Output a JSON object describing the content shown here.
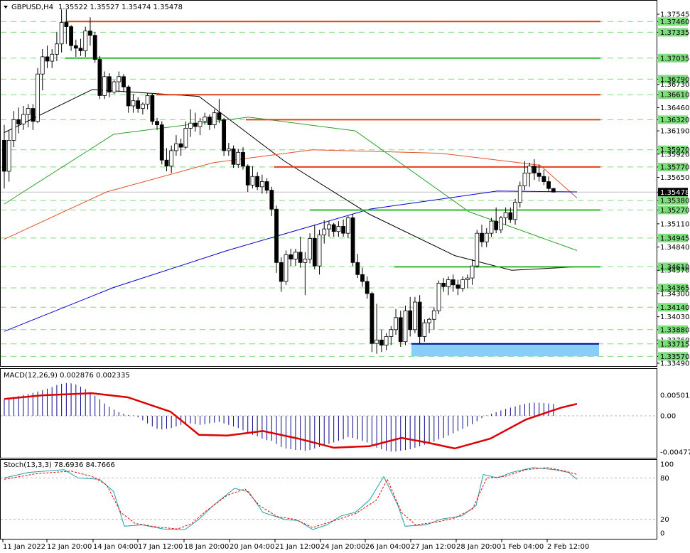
{
  "window": {
    "symbol_title": "GBPUSD,H4",
    "ohlc": "1.35522 1.35527 1.35474 1.35478",
    "menu_icon": "triangle-down-icon"
  },
  "colors": {
    "background": "#ffffff",
    "bull_body": "#ffffff",
    "bear_body": "#000000",
    "candle_outline": "#000000",
    "ma_fast": "#000000",
    "ma_medium": "#2ca02c",
    "ma_slow": "#e0522a",
    "ma_longest": "#0000cc",
    "level_red": "#e0401a",
    "level_green": "#2eb82e",
    "support_zone": "#87cefa",
    "support_line": "#00008b",
    "dashed_grid": "#7fdc7f",
    "macd_hist": "#0a0a8a",
    "macd_signal": "#dd0000",
    "stoch_main": "#21a0a8",
    "stoch_signal": "#ee0000",
    "axis_label_bg": "#7fdc7f",
    "current_price_bg": "#000000"
  },
  "price_axis": {
    "labels": [
      "1.37545",
      "1.37460",
      "1.37335",
      "1.37035",
      "1.36790",
      "1.36730",
      "1.36610",
      "1.36460",
      "1.36320",
      "1.36190",
      "1.35970",
      "1.35920",
      "1.35770",
      "1.35650",
      "1.35478",
      "1.35380",
      "1.35270",
      "1.35110",
      "1.34945",
      "1.34840",
      "1.34610",
      "1.34570",
      "1.34365",
      "1.34300",
      "1.34140",
      "1.34030",
      "1.33880",
      "1.33760",
      "1.33715",
      "1.33570",
      "1.33490"
    ],
    "highlighted": [
      "1.37460",
      "1.37335",
      "1.37035",
      "1.36790",
      "1.36610",
      "1.36320",
      "1.35970",
      "1.35770",
      "1.35380",
      "1.35270",
      "1.34945",
      "1.34610",
      "1.34365",
      "1.34140",
      "1.33880",
      "1.33715",
      "1.33570"
    ],
    "current_price": "1.35478"
  },
  "time_axis": {
    "labels": [
      "11 Jan 2022",
      "12 Jan 20:00",
      "14 Jan 04:00",
      "17 Jan 12:00",
      "18 Jan 20:00",
      "20 Jan 04:00",
      "21 Jan 12:00",
      "24 Jan 20:00",
      "26 Jan 04:00",
      "27 Jan 12:00",
      "28 Jan 20:00",
      "1 Feb 04:00",
      "2 Feb 12:00"
    ]
  },
  "macd_panel": {
    "title": "MACD(12,26,9) 0.002876 0.002335",
    "axis_labels": [
      "0.005015",
      "0.00",
      "-0.004773"
    ]
  },
  "stoch_panel": {
    "title": "Stoch(13,3,3) 78.6936 84.7666",
    "axis_labels": [
      "100",
      "80",
      "20",
      "0"
    ]
  },
  "chart_data": {
    "type": "candlestick",
    "title": "GBPUSD,H4",
    "ylim": [
      1.3349,
      1.37545
    ],
    "grid": false,
    "horizontal_levels": [
      {
        "price": 1.3746,
        "color": "red"
      },
      {
        "price": 1.37035,
        "color": "green"
      },
      {
        "price": 1.3661,
        "color": "red"
      },
      {
        "price": 1.3632,
        "color": "red"
      },
      {
        "price": 1.3577,
        "color": "red"
      },
      {
        "price": 1.3527,
        "color": "green"
      },
      {
        "price": 1.3461,
        "color": "green"
      }
    ],
    "support_zone": {
      "low": 1.3357,
      "high": 1.33715
    },
    "moving_average_sample": [
      {
        "name": "fast",
        "values": [
          1.3617,
          1.3667,
          1.3659,
          1.3584,
          1.3522,
          1.3474,
          1.3457,
          1.3461
        ]
      },
      {
        "name": "medium",
        "values": [
          1.3534,
          1.3615,
          1.3635,
          1.3619,
          1.3525,
          1.348
        ]
      },
      {
        "name": "slow",
        "values": [
          1.3493,
          1.3548,
          1.3582,
          1.3597,
          1.3593,
          1.3579,
          1.3541
        ]
      },
      {
        "name": "longest",
        "values": [
          1.3386,
          1.3437,
          1.348,
          1.3528,
          1.3549,
          1.3548
        ]
      }
    ],
    "candles": [
      [
        1.3608,
        1.3626,
        1.3552,
        1.3572
      ],
      [
        1.3572,
        1.3619,
        1.356,
        1.3608
      ],
      [
        1.3608,
        1.3642,
        1.36,
        1.3632
      ],
      [
        1.3632,
        1.3646,
        1.3616,
        1.3627
      ],
      [
        1.3627,
        1.3648,
        1.362,
        1.3638
      ],
      [
        1.3638,
        1.365,
        1.3623,
        1.3645
      ],
      [
        1.3645,
        1.365,
        1.362,
        1.363
      ],
      [
        1.363,
        1.3692,
        1.3628,
        1.3685
      ],
      [
        1.3685,
        1.3714,
        1.3666,
        1.3705
      ],
      [
        1.3705,
        1.3718,
        1.3692,
        1.37
      ],
      [
        1.37,
        1.3714,
        1.3692,
        1.3708
      ],
      [
        1.3708,
        1.3734,
        1.37,
        1.372
      ],
      [
        1.372,
        1.376,
        1.371,
        1.3745
      ],
      [
        1.3745,
        1.376,
        1.372,
        1.374
      ],
      [
        1.374,
        1.3742,
        1.3712,
        1.3718
      ],
      [
        1.3718,
        1.3725,
        1.3705,
        1.3715
      ],
      [
        1.3715,
        1.3726,
        1.3706,
        1.3712
      ],
      [
        1.3712,
        1.374,
        1.3705,
        1.3735
      ],
      [
        1.3735,
        1.3751,
        1.3718,
        1.373
      ],
      [
        1.373,
        1.3734,
        1.3698,
        1.3702
      ],
      [
        1.3702,
        1.3706,
        1.3656,
        1.366
      ],
      [
        1.366,
        1.3688,
        1.3656,
        1.3682
      ],
      [
        1.3682,
        1.3686,
        1.3658,
        1.3664
      ],
      [
        1.3664,
        1.3678,
        1.3662,
        1.3676
      ],
      [
        1.3676,
        1.3688,
        1.3664,
        1.3682
      ],
      [
        1.3682,
        1.3685,
        1.3664,
        1.367
      ],
      [
        1.367,
        1.3672,
        1.364,
        1.3648
      ],
      [
        1.3648,
        1.3662,
        1.364,
        1.3654
      ],
      [
        1.3654,
        1.3658,
        1.364,
        1.3645
      ],
      [
        1.3645,
        1.3652,
        1.3638,
        1.365
      ],
      [
        1.365,
        1.3663,
        1.3644,
        1.366
      ],
      [
        1.366,
        1.3662,
        1.3626,
        1.363
      ],
      [
        1.363,
        1.3634,
        1.362,
        1.3626
      ],
      [
        1.3626,
        1.363,
        1.358,
        1.3585
      ],
      [
        1.3585,
        1.3599,
        1.3572,
        1.3578
      ],
      [
        1.3578,
        1.3602,
        1.357,
        1.3596
      ],
      [
        1.3596,
        1.3614,
        1.359,
        1.3604
      ],
      [
        1.3604,
        1.361,
        1.359,
        1.36
      ],
      [
        1.36,
        1.363,
        1.3598,
        1.3622
      ],
      [
        1.3622,
        1.3644,
        1.3612,
        1.3628
      ],
      [
        1.3628,
        1.364,
        1.3618,
        1.3624
      ],
      [
        1.3624,
        1.3634,
        1.3614,
        1.363
      ],
      [
        1.363,
        1.364,
        1.3626,
        1.3635
      ],
      [
        1.3635,
        1.3638,
        1.362,
        1.3626
      ],
      [
        1.3626,
        1.3644,
        1.3622,
        1.364
      ],
      [
        1.364,
        1.3656,
        1.3628,
        1.3632
      ],
      [
        1.3632,
        1.3634,
        1.359,
        1.3596
      ],
      [
        1.3596,
        1.3605,
        1.359,
        1.3598
      ],
      [
        1.3598,
        1.3602,
        1.3576,
        1.358
      ],
      [
        1.358,
        1.3598,
        1.3576,
        1.3594
      ],
      [
        1.3594,
        1.36,
        1.3574,
        1.3578
      ],
      [
        1.3578,
        1.358,
        1.3548,
        1.3556
      ],
      [
        1.3556,
        1.3578,
        1.3552,
        1.3566
      ],
      [
        1.3566,
        1.3571,
        1.355,
        1.3554
      ],
      [
        1.3554,
        1.3568,
        1.3546,
        1.356
      ],
      [
        1.356,
        1.3564,
        1.3546,
        1.355
      ],
      [
        1.355,
        1.3554,
        1.352,
        1.3528
      ],
      [
        1.3528,
        1.3532,
        1.3454,
        1.3466
      ],
      [
        1.3466,
        1.3472,
        1.3432,
        1.3444
      ],
      [
        1.3444,
        1.348,
        1.344,
        1.3475
      ],
      [
        1.3475,
        1.3482,
        1.3462,
        1.347
      ],
      [
        1.347,
        1.3482,
        1.3462,
        1.3478
      ],
      [
        1.3478,
        1.3496,
        1.346,
        1.3466
      ],
      [
        1.3466,
        1.3478,
        1.3428,
        1.347
      ],
      [
        1.347,
        1.35,
        1.3465,
        1.3494
      ],
      [
        1.3494,
        1.351,
        1.3458,
        1.3462
      ],
      [
        1.3462,
        1.3504,
        1.3452,
        1.3498
      ],
      [
        1.3498,
        1.3515,
        1.3488,
        1.3505
      ],
      [
        1.3505,
        1.3514,
        1.3496,
        1.351
      ],
      [
        1.351,
        1.3512,
        1.3496,
        1.3502
      ],
      [
        1.3502,
        1.3514,
        1.3496,
        1.3508
      ],
      [
        1.3508,
        1.3516,
        1.3496,
        1.35
      ],
      [
        1.35,
        1.352,
        1.3494,
        1.3518
      ],
      [
        1.3518,
        1.3522,
        1.3462,
        1.3466
      ],
      [
        1.3466,
        1.3476,
        1.3448,
        1.3452
      ],
      [
        1.3452,
        1.346,
        1.3438,
        1.3444
      ],
      [
        1.3444,
        1.345,
        1.3424,
        1.343
      ],
      [
        1.343,
        1.3432,
        1.3362,
        1.3372
      ],
      [
        1.3372,
        1.3418,
        1.336,
        1.3376
      ],
      [
        1.3376,
        1.3388,
        1.3362,
        1.337
      ],
      [
        1.337,
        1.3384,
        1.3364,
        1.338
      ],
      [
        1.338,
        1.3392,
        1.337,
        1.3388
      ],
      [
        1.3388,
        1.3412,
        1.3382,
        1.3402
      ],
      [
        1.3402,
        1.341,
        1.3368,
        1.3374
      ],
      [
        1.3374,
        1.3416,
        1.337,
        1.341
      ],
      [
        1.341,
        1.3426,
        1.338,
        1.3388
      ],
      [
        1.3388,
        1.3426,
        1.3384,
        1.342
      ],
      [
        1.342,
        1.3428,
        1.3372,
        1.338
      ],
      [
        1.338,
        1.34,
        1.3374,
        1.3396
      ],
      [
        1.3396,
        1.3402,
        1.3384,
        1.34
      ],
      [
        1.34,
        1.3414,
        1.3388,
        1.341
      ],
      [
        1.341,
        1.3445,
        1.3406,
        1.3442
      ],
      [
        1.3442,
        1.3448,
        1.3432,
        1.3438
      ],
      [
        1.3438,
        1.345,
        1.3428,
        1.3446
      ],
      [
        1.3446,
        1.3452,
        1.3432,
        1.344
      ],
      [
        1.344,
        1.3446,
        1.3428,
        1.3436
      ],
      [
        1.3436,
        1.345,
        1.3432,
        1.3446
      ],
      [
        1.3446,
        1.3452,
        1.3436,
        1.3448
      ],
      [
        1.3448,
        1.347,
        1.344,
        1.3462
      ],
      [
        1.3462,
        1.3504,
        1.346,
        1.35
      ],
      [
        1.35,
        1.351,
        1.3484,
        1.349
      ],
      [
        1.349,
        1.3506,
        1.3484,
        1.35
      ],
      [
        1.35,
        1.3518,
        1.3496,
        1.3514
      ],
      [
        1.3514,
        1.353,
        1.35,
        1.3504
      ],
      [
        1.3504,
        1.352,
        1.35,
        1.3518
      ],
      [
        1.3518,
        1.353,
        1.351,
        1.3524
      ],
      [
        1.3524,
        1.353,
        1.3512,
        1.3516
      ],
      [
        1.3516,
        1.354,
        1.351,
        1.3536
      ],
      [
        1.3536,
        1.356,
        1.353,
        1.3555
      ],
      [
        1.3555,
        1.3584,
        1.355,
        1.357
      ],
      [
        1.357,
        1.3582,
        1.3554,
        1.3578
      ],
      [
        1.3578,
        1.3586,
        1.3562,
        1.357
      ],
      [
        1.357,
        1.358,
        1.356,
        1.3566
      ],
      [
        1.3566,
        1.3574,
        1.3556,
        1.356
      ],
      [
        1.356,
        1.3566,
        1.3548,
        1.3552
      ],
      [
        1.3552,
        1.35527,
        1.35474,
        1.35478
      ]
    ]
  }
}
